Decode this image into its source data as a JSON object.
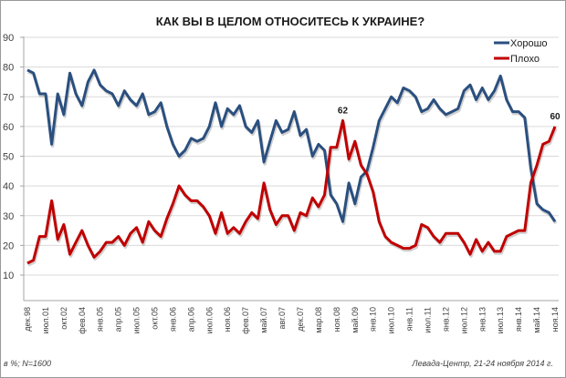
{
  "chart_data": {
    "type": "line",
    "title": "КАК ВЫ В ЦЕЛОМ ОТНОСИТЕСЬ К УКРАИНЕ?",
    "xlabel": "",
    "ylabel": "",
    "ylim": [
      0,
      90
    ],
    "yticks": [
      10,
      20,
      30,
      40,
      50,
      60,
      70,
      80,
      90
    ],
    "grid": true,
    "legend_position": "top-right",
    "x_tick_labels": [
      "дек.98",
      "июл.01",
      "окт.02",
      "фев.04",
      "янв.05",
      "апр.05",
      "июл.05",
      "окт.05",
      "янв.06",
      "апр.06",
      "июл.06",
      "ноя.06",
      "фев.07",
      "май.07",
      "авг.07",
      "дек.07",
      "мар.08",
      "ноя.08",
      "май.09",
      "янв.10",
      "июл.10",
      "янв.11",
      "июл.11",
      "янв.12",
      "июл.12",
      "янв.13",
      "июл.13",
      "янв.14",
      "май.14",
      "ноя.14"
    ],
    "series": [
      {
        "name": "Хорошо",
        "color": "#2a4f7f",
        "values": [
          79,
          78,
          71,
          71,
          54,
          71,
          64,
          78,
          71,
          67,
          75,
          79,
          74,
          72,
          71,
          67,
          72,
          69,
          67,
          71,
          64,
          65,
          68,
          60,
          54,
          50,
          52,
          56,
          55,
          56,
          60,
          68,
          60,
          66,
          64,
          67,
          60,
          58,
          62,
          48,
          55,
          62,
          58,
          59,
          65,
          57,
          59,
          50,
          54,
          52,
          37,
          34,
          28,
          41,
          34,
          43,
          45,
          53,
          62,
          66,
          70,
          68,
          73,
          72,
          70,
          65,
          66,
          69,
          66,
          64,
          65,
          66,
          72,
          74,
          69,
          73,
          69,
          72,
          77,
          69,
          65,
          65,
          63,
          46,
          34,
          32,
          31,
          28
        ]
      },
      {
        "name": "Плохо",
        "color": "#c00000",
        "values": [
          14,
          15,
          23,
          23,
          35,
          22,
          27,
          17,
          21,
          25,
          20,
          16,
          18,
          21,
          21,
          23,
          20,
          24,
          26,
          21,
          28,
          25,
          23,
          29,
          34,
          40,
          37,
          35,
          35,
          33,
          30,
          24,
          31,
          24,
          26,
          24,
          28,
          31,
          29,
          41,
          32,
          27,
          30,
          30,
          25,
          31,
          30,
          36,
          33,
          37,
          53,
          53,
          62,
          49,
          55,
          47,
          44,
          38,
          28,
          23,
          21,
          20,
          19,
          19,
          20,
          27,
          26,
          23,
          21,
          24,
          24,
          24,
          21,
          17,
          22,
          18,
          21,
          18,
          18,
          23,
          24,
          25,
          25,
          41,
          47,
          54,
          55,
          60
        ]
      }
    ],
    "annotations": [
      {
        "series": "Плохо",
        "x_index": 52,
        "text": "62"
      },
      {
        "series": "Плохо",
        "x_index": 87,
        "text": "60"
      }
    ],
    "footnote_left": "в %; N=1600",
    "footnote_right": "Левада-Центр, 21-24 ноября 2014 г."
  }
}
